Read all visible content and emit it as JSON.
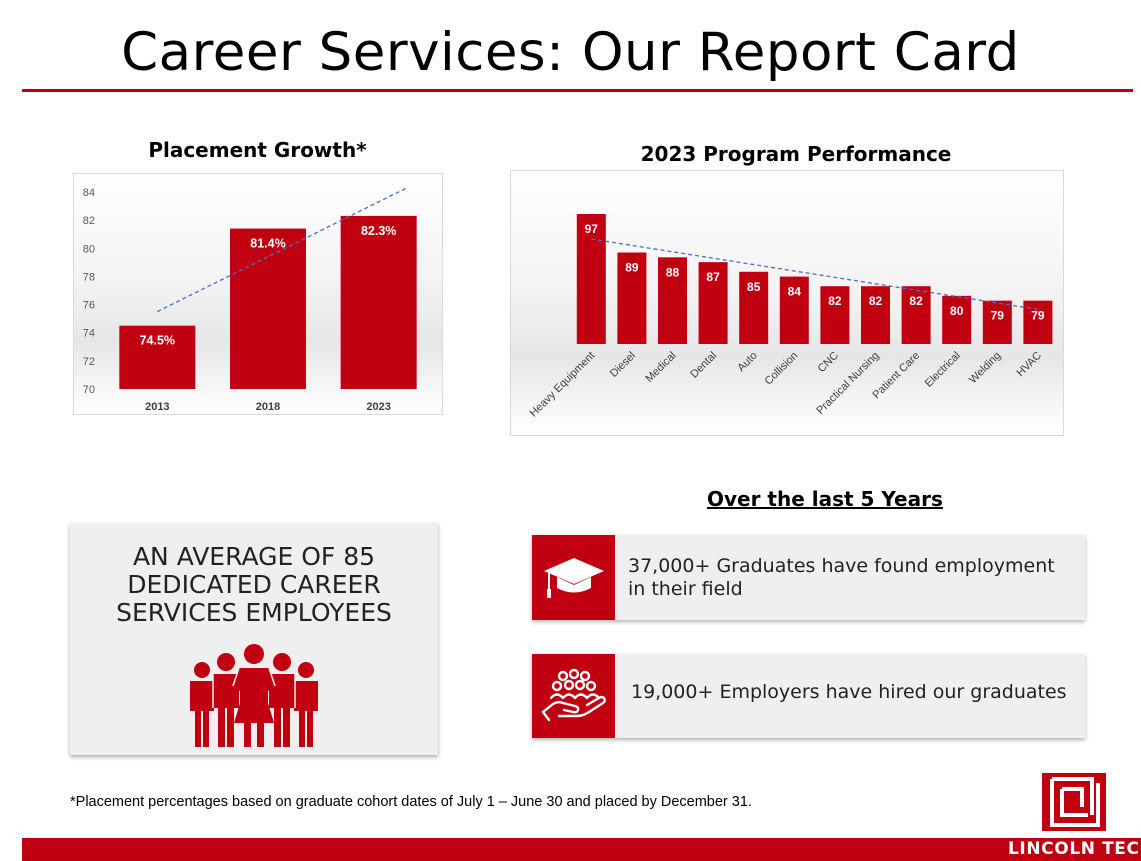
{
  "page": {
    "title": "Career Services:  Our Report Card",
    "brand_red": "#c00010"
  },
  "chart_data": [
    {
      "type": "bar",
      "title": "Placement Growth*",
      "categories": [
        "2013",
        "2018",
        "2023"
      ],
      "values": [
        74.5,
        81.4,
        82.3
      ],
      "value_labels": [
        "74.5%",
        "81.4%",
        "82.3%"
      ],
      "yticks": [
        "70",
        "72",
        "74",
        "76",
        "78",
        "80",
        "82",
        "84"
      ],
      "ylim": [
        70,
        84
      ],
      "trendline": "linear",
      "grid": false,
      "color": "#c00010"
    },
    {
      "type": "bar",
      "title": "2023 Program Performance",
      "categories": [
        "Heavy Equipment",
        "Diesel",
        "Medical",
        "Dental",
        "Auto",
        "Collision",
        "CNC",
        "Practical Nursing",
        "Patient Care",
        "Electrical",
        "Welding",
        "HVAC"
      ],
      "values": [
        97,
        89,
        88,
        87,
        85,
        84,
        82,
        82,
        82,
        80,
        79,
        79
      ],
      "value_labels": [
        "97",
        "89",
        "88",
        "87",
        "85",
        "84",
        "82",
        "82",
        "82",
        "80",
        "79",
        "79"
      ],
      "trendline": "linear",
      "grid": false,
      "color": "#c00010"
    }
  ],
  "employees": {
    "line1": "AN AVERAGE OF 85",
    "line2": "DEDICATED CAREER",
    "line3": "SERVICES EMPLOYEES",
    "icon": "people-group-icon"
  },
  "five_years": {
    "heading": "Over the last 5 Years",
    "stats": [
      {
        "icon": "graduation-cap-icon",
        "line1": "37,000+ Graduates have found employment",
        "line2": "in their field"
      },
      {
        "icon": "hand-holding-people-icon",
        "line1": "19,000+ Employers have hired our graduates"
      }
    ]
  },
  "footnote": "*Placement percentages based on graduate cohort dates of July 1 – June 30 and placed by December 31.",
  "logo": {
    "text": "LINCOLN TECH"
  }
}
